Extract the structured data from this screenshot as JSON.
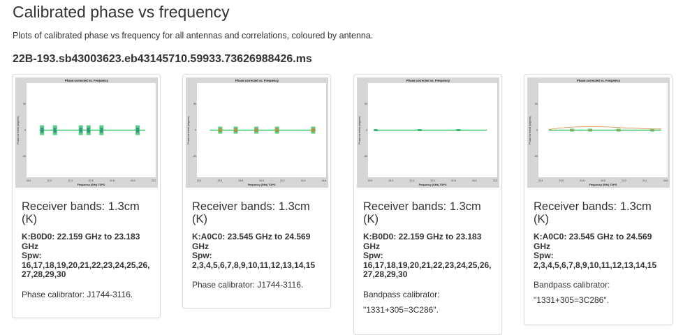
{
  "page": {
    "title": "Calibrated phase vs frequency",
    "description": "Plots of calibrated phase vs frequency for all antennas and correlations, coloured by antenna.",
    "ms_name": "22B-193.sb43003623.eb43145710.59933.73626988426.ms"
  },
  "colors": {
    "text": "#333333",
    "card_border": "#dddddd",
    "plot_frame": "#d6d6d6",
    "green": "#3cc46e",
    "orange": "#e07a26",
    "teal": "#2a8a82"
  },
  "cards": [
    {
      "plot": {
        "title": "Phase:corrected vs. Frequency",
        "ylabel": "Phase:corrected (degrees)",
        "xlabel": "Frequency (GHz) TOPO",
        "xticks": [
          "22.0",
          "22.2",
          "22.4",
          "22.6",
          "22.8",
          "23.0",
          "23.2"
        ],
        "yticks": [
          "50",
          "0",
          "-50"
        ]
      },
      "band_title": "Receiver bands: 1.3cm (K)",
      "freq": "K:B0D0: 22.159 GHz to 23.183 GHz",
      "spw_label": "Spw:",
      "spw": "16,17,18,19,20,21,22,23,24,25,26,27,28,29,30",
      "calibrator_label": "Phase calibrator:",
      "calibrator": "J1744-3116."
    },
    {
      "plot": {
        "title": "Phase:corrected vs. Frequency",
        "ylabel": "Phase:corrected (degrees)",
        "xlabel": "Frequency (GHz) TOPO",
        "xticks": [
          "23.4",
          "23.6",
          "23.8",
          "24.0",
          "24.2",
          "24.4",
          "24.6"
        ],
        "yticks": [
          "50",
          "0",
          "-50"
        ]
      },
      "band_title": "Receiver bands: 1.3cm (K)",
      "freq": "K:A0C0: 23.545 GHz to 24.569 GHz",
      "spw_label": "Spw:",
      "spw": "2,3,4,5,6,7,8,9,10,11,12,13,14,15",
      "calibrator_label": "Phase calibrator:",
      "calibrator": "J1744-3116."
    },
    {
      "plot": {
        "title": "Phase:corrected vs. Frequency",
        "ylabel": "Phase:corrected (degrees)",
        "xlabel": "Frequency (GHz) TOPO",
        "xticks": [
          "22.0",
          "22.2",
          "22.4",
          "22.6",
          "22.8",
          "23.0",
          "23.2"
        ],
        "yticks": [
          "50",
          "0",
          "-50"
        ]
      },
      "band_title": "Receiver bands: 1.3cm (K)",
      "freq": "K:B0D0: 22.159 GHz to 23.183 GHz",
      "spw_label": "Spw:",
      "spw": "16,17,18,19,20,21,22,23,24,25,26,27,28,29,30",
      "calibrator_label": "Bandpass calibrator:",
      "calibrator": "\"1331+305=3C286\"."
    },
    {
      "plot": {
        "title": "Phase:corrected vs. Frequency",
        "ylabel": "Phase:corrected (degrees)",
        "xlabel": "Frequency (GHz) TOPO",
        "xticks": [
          "23.4",
          "23.6",
          "23.8",
          "24.0",
          "24.2",
          "24.4",
          "24.6"
        ],
        "yticks": [
          "50",
          "0",
          "-50"
        ]
      },
      "band_title": "Receiver bands: 1.3cm (K)",
      "freq": "K:A0C0: 23.545 GHz to 24.569 GHz",
      "spw_label": "Spw:",
      "spw": "2,3,4,5,6,7,8,9,10,11,12,13,14,15",
      "calibrator_label": "Bandpass calibrator:",
      "calibrator": "\"1331+305=3C286\"."
    }
  ]
}
